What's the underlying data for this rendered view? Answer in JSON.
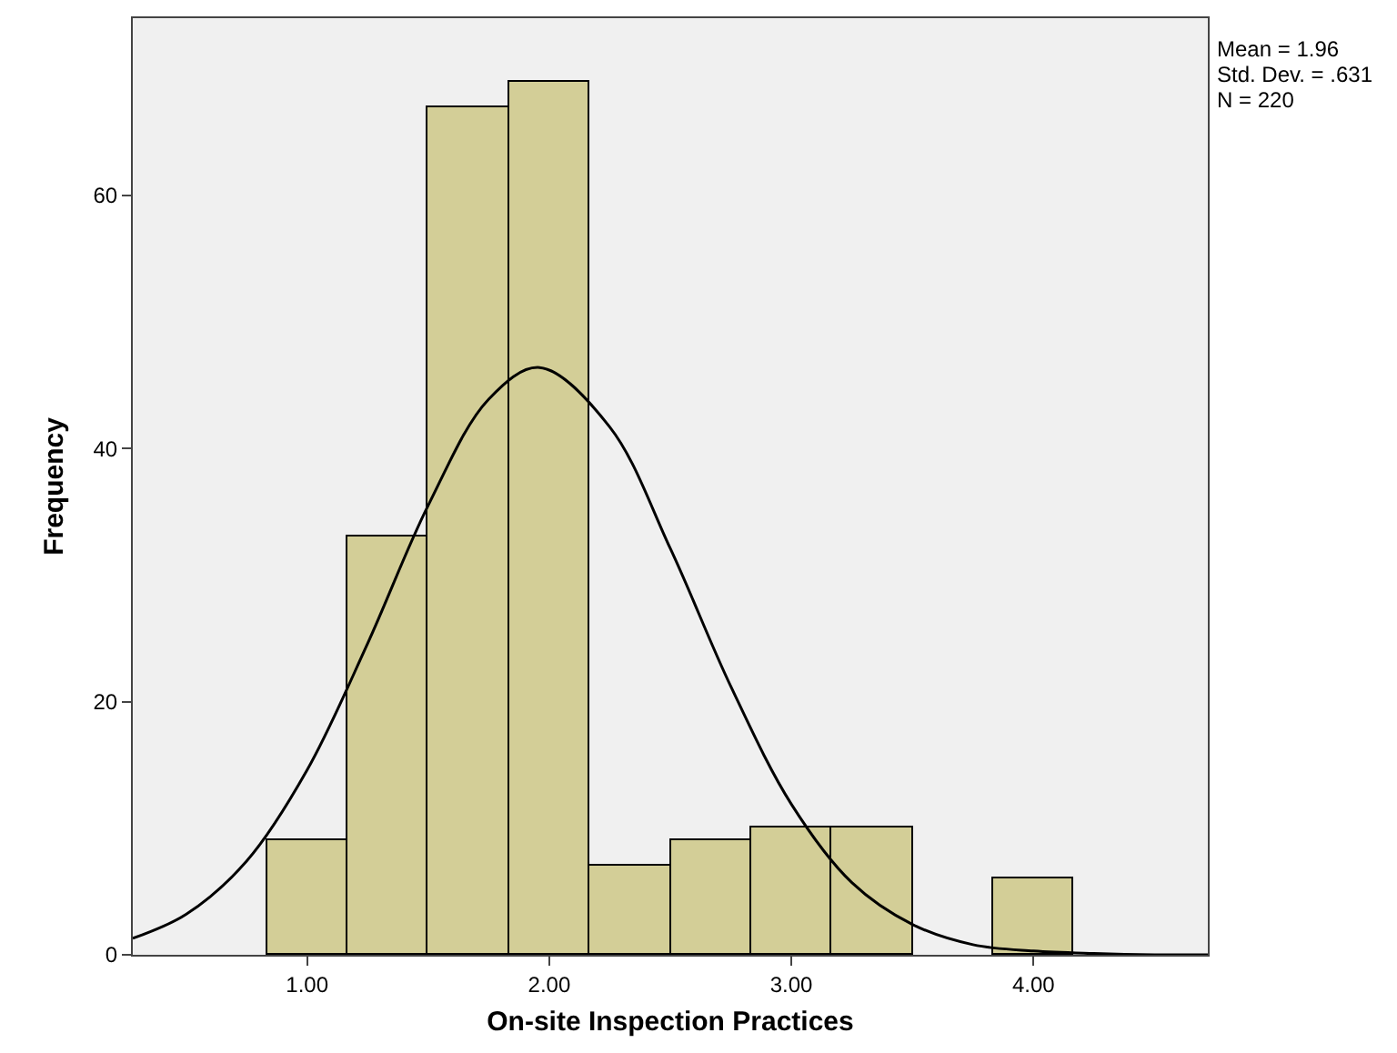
{
  "chart_data": {
    "type": "histogram",
    "xlabel": "On-site Inspection Practices",
    "ylabel": "Frequency",
    "bins": [
      0.833,
      1.167,
      1.5,
      1.833,
      2.167,
      2.5,
      2.833,
      3.167,
      3.5,
      3.833,
      4.167
    ],
    "values": [
      9,
      33,
      67,
      69,
      7,
      9,
      10,
      10,
      0,
      6
    ],
    "color": "#d3ce97",
    "series": [
      {
        "type": "line",
        "color": "#000000",
        "x": [
          0.28,
          0.5,
          0.75,
          1.0,
          1.25,
          1.5,
          1.75,
          1.96,
          2.25,
          2.5,
          2.75,
          3.0,
          3.25,
          3.5,
          3.75,
          4.0,
          4.25,
          4.5,
          4.72
        ],
        "values": [
          1.3,
          3.2,
          7.4,
          14.6,
          24.6,
          35.5,
          43.9,
          46.4,
          41.7,
          32.1,
          21.2,
          11.9,
          5.7,
          2.4,
          0.8,
          0.3,
          0.1,
          0,
          0
        ]
      }
    ],
    "xlim": [
      0.28,
      4.72
    ],
    "ylim": [
      0,
      74
    ],
    "xticks": [
      {
        "value": 1,
        "label": "1.00"
      },
      {
        "value": 2,
        "label": "2.00"
      },
      {
        "value": 3,
        "label": "3.00"
      },
      {
        "value": 4,
        "label": "4.00"
      }
    ],
    "yticks": [
      0,
      20,
      40,
      60
    ],
    "grid": false,
    "marker": "none",
    "annotations": [
      "Mean = 1.96",
      "Std. Dev. = .631",
      "N = 220"
    ]
  }
}
